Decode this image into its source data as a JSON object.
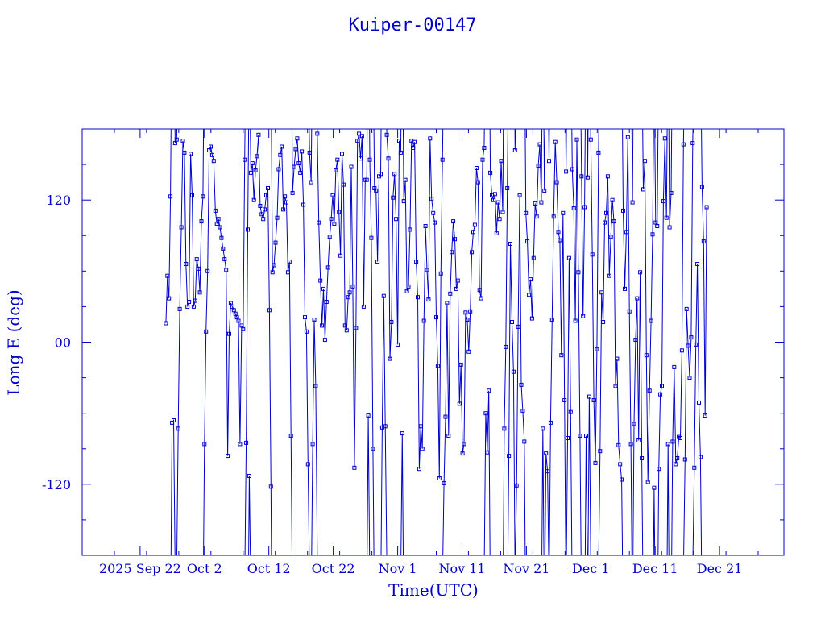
{
  "chart_data": {
    "type": "scatter",
    "title": "Kuiper-00147",
    "xlabel": "Time(UTC)",
    "ylabel": "Long E (deg)",
    "x_tick_labels": [
      "2025 Sep 22",
      "Oct  2",
      "Oct 12",
      "Oct 22",
      "Nov  1",
      "Nov 11",
      "Nov 21",
      "Dec  1",
      "Dec 11",
      "Dec 21"
    ],
    "y_tick_labels": [
      "-120",
      "00",
      "120"
    ],
    "xlim": [
      "2025-09-13",
      "2025-12-31"
    ],
    "ylim": [
      -180,
      180
    ],
    "x_major_ticks": [
      "2025-09-22",
      "2025-10-02",
      "2025-10-12",
      "2025-10-22",
      "2025-11-01",
      "2025-11-11",
      "2025-11-21",
      "2025-12-01",
      "2025-12-11",
      "2025-12-21"
    ],
    "y_major_ticks": [
      -120,
      0,
      120
    ],
    "y_minor_step": 30,
    "x_minor_step_days": 5,
    "color": "#0000cc",
    "marker": "square",
    "connected": true,
    "x_start": "2025-09-26",
    "x_end": "2025-12-19",
    "series": [
      {
        "values": [
          16,
          56,
          37,
          123,
          -68,
          -66,
          168,
          171,
          -73,
          28,
          97,
          170,
          160,
          66,
          30,
          34,
          159,
          124,
          30,
          35,
          70,
          62,
          42,
          102,
          123,
          -86,
          9,
          60,
          162,
          165,
          158,
          153,
          111,
          100,
          104,
          97,
          88,
          79,
          70,
          61,
          -96,
          7,
          33,
          30,
          27,
          24,
          21,
          18,
          -86,
          14,
          11,
          154,
          -85,
          95,
          -113,
          143,
          151,
          120,
          145,
          157,
          175,
          115,
          108,
          104,
          112,
          124,
          130,
          27,
          -122,
          59,
          65,
          84,
          105,
          146,
          158,
          165,
          112,
          123,
          118,
          59,
          68,
          -79,
          126,
          148,
          163,
          172,
          151,
          143,
          161,
          116,
          21,
          9,
          -103,
          160,
          135,
          -86,
          19,
          -37,
          176,
          101,
          52,
          14,
          45,
          2,
          34,
          63,
          89,
          104,
          124,
          100,
          145,
          154,
          110,
          73,
          159,
          133,
          14,
          10,
          38,
          42,
          148,
          47,
          -106,
          12,
          170,
          176,
          155,
          174,
          30,
          137,
          137,
          -62,
          154,
          88,
          -90,
          130,
          128,
          68,
          140,
          142,
          -72,
          39,
          -71,
          175,
          155,
          -14,
          17,
          122,
          142,
          104,
          -2,
          170,
          160,
          -77,
          119,
          137,
          43,
          47,
          95,
          170,
          164,
          169,
          68,
          38,
          -107,
          -71,
          -90,
          18,
          98,
          61,
          36,
          172,
          121,
          109,
          101,
          21,
          -20,
          -115,
          58,
          154,
          -119,
          -63,
          33,
          -79,
          41,
          76,
          102,
          87,
          45,
          52,
          -52,
          -19,
          -94,
          -86,
          25,
          19,
          -8,
          26,
          76,
          93,
          99,
          147,
          135,
          44,
          37,
          154,
          164,
          -60,
          -93,
          -41,
          143,
          124,
          120,
          125,
          92,
          118,
          104,
          153,
          110,
          -73,
          -4,
          130,
          -96,
          83,
          17,
          -25,
          162,
          -121,
          13,
          124,
          -36,
          -58,
          -84,
          109,
          85,
          40,
          53,
          20,
          71,
          117,
          106,
          149,
          167,
          118,
          -73,
          128,
          -94,
          -109,
          153,
          -68,
          19,
          106,
          169,
          135,
          93,
          86,
          -11,
          109,
          -49,
          144,
          -81,
          71,
          -59,
          146,
          113,
          18,
          171,
          59,
          -79,
          140,
          22,
          114,
          -79,
          139,
          -46,
          171,
          74,
          -49,
          -102,
          -6,
          160,
          -92,
          42,
          17,
          101,
          109,
          140,
          56,
          89,
          120,
          102,
          -37,
          -14,
          -87,
          -103,
          -116,
          111,
          45,
          93,
          173,
          26,
          -86,
          118,
          -69,
          2,
          37,
          -83,
          59,
          -98,
          129,
          153,
          -11,
          -118,
          -41,
          18,
          91,
          -123,
          101,
          98,
          -107,
          -44,
          -37,
          119,
          172,
          105,
          -86,
          97,
          126,
          -84,
          -21,
          -103,
          -98,
          -80,
          -81,
          -7,
          167,
          -99,
          28,
          -3,
          -30,
          4,
          168,
          -106,
          -2,
          66,
          -51,
          -97,
          131,
          85,
          -62,
          114
        ]
      }
    ]
  }
}
